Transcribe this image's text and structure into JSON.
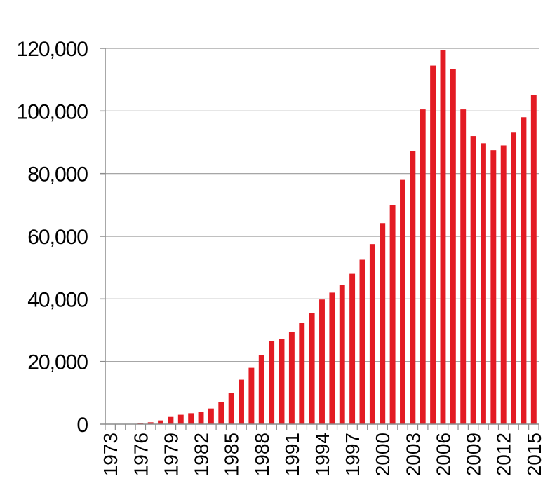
{
  "chart_data": {
    "type": "bar",
    "title": "",
    "xlabel": "",
    "ylabel": "",
    "ylim": [
      0,
      120000
    ],
    "yticks": [
      0,
      20000,
      40000,
      60000,
      80000,
      100000,
      120000
    ],
    "ytick_labels": [
      "0",
      "20,000",
      "40,000",
      "60,000",
      "80,000",
      "100,000",
      "120,000"
    ],
    "grid": true,
    "legend": "none",
    "bar_color": "#e31b23",
    "grid_color": "#9a9a9a",
    "axis_color": "#8c8c8c",
    "categories": [
      "1973",
      "1974",
      "1975",
      "1976",
      "1977",
      "1978",
      "1979",
      "1980",
      "1981",
      "1982",
      "1983",
      "1984",
      "1985",
      "1986",
      "1987",
      "1988",
      "1989",
      "1990",
      "1991",
      "1992",
      "1993",
      "1994",
      "1995",
      "1996",
      "1997",
      "1998",
      "1999",
      "2000",
      "2001",
      "2002",
      "2003",
      "2004",
      "2005",
      "2006",
      "2007",
      "2008",
      "2009",
      "2010",
      "2011",
      "2012",
      "2013",
      "2014",
      "2015"
    ],
    "xtick_labels": [
      "1973",
      "1976",
      "1979",
      "1982",
      "1985",
      "1988",
      "1991",
      "1994",
      "1997",
      "2000",
      "2003",
      "2006",
      "2009",
      "2012",
      "2015"
    ],
    "values": [
      0,
      0,
      100,
      300,
      600,
      1200,
      2300,
      3000,
      3500,
      4000,
      5000,
      7000,
      10000,
      14200,
      18000,
      22000,
      26500,
      27300,
      29500,
      32300,
      35500,
      39800,
      42000,
      44500,
      48000,
      52500,
      57500,
      64200,
      70000,
      78000,
      87300,
      100500,
      114500,
      119500,
      113500,
      100500,
      92000,
      89700,
      87500,
      89000,
      93300,
      98000,
      105000
    ]
  }
}
